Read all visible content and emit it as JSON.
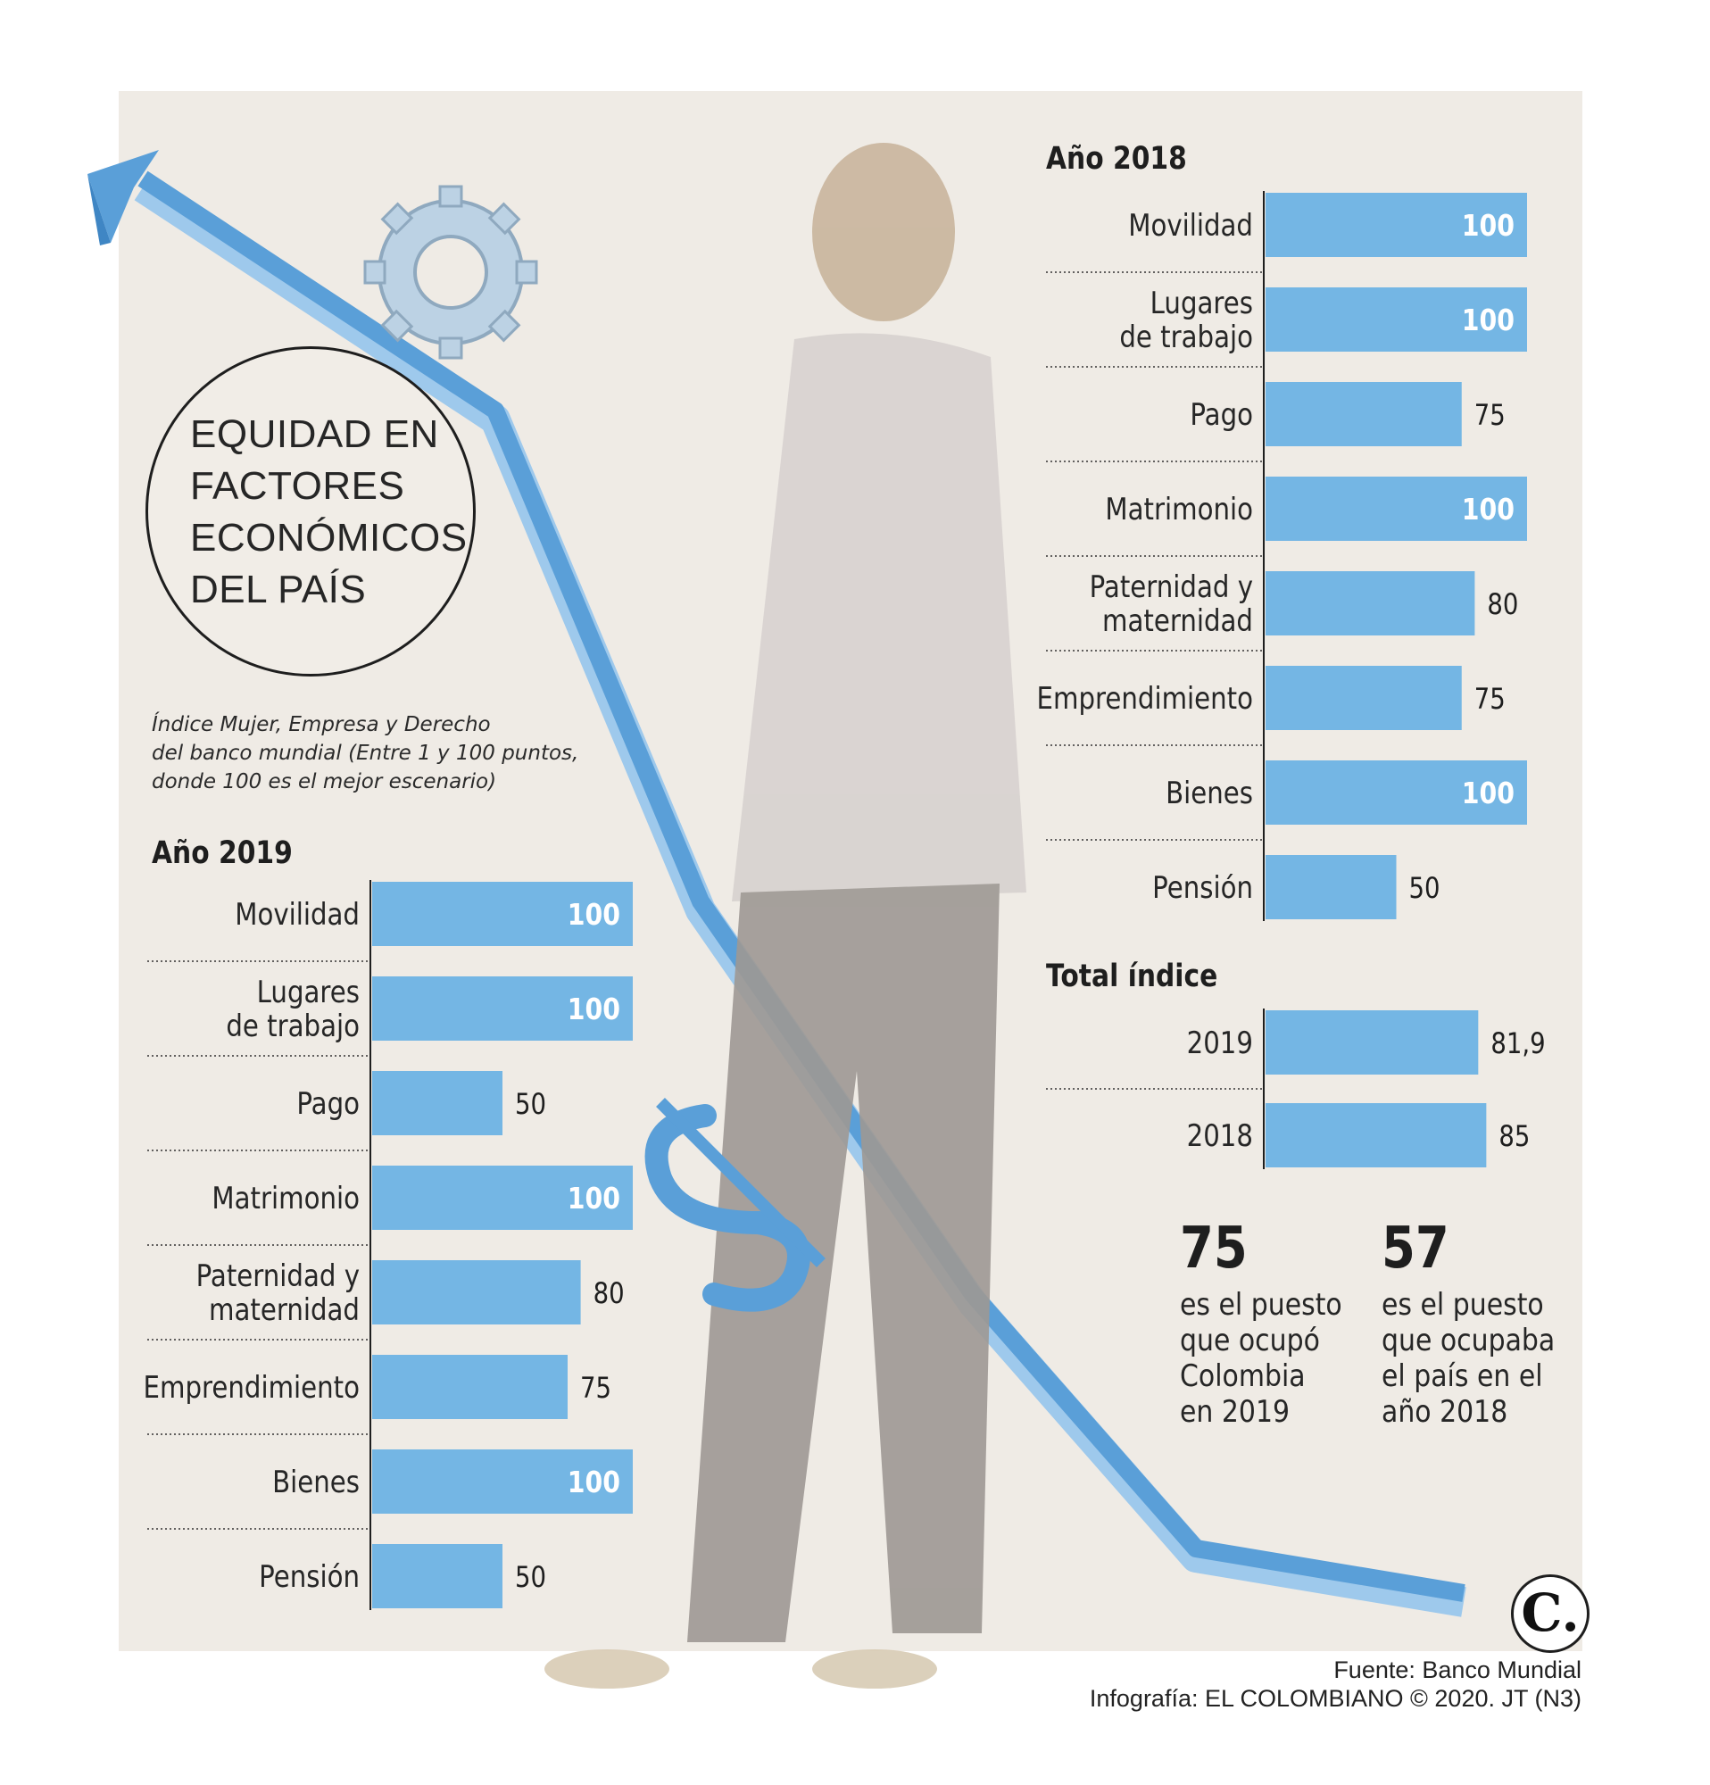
{
  "title": [
    "EQUIDAD EN",
    "FACTORES",
    "ECONÓMICOS",
    "DEL PAÍS"
  ],
  "subtitle": [
    "Índice Mujer, Empresa y Derecho",
    "del banco mundial (Entre 1 y 100 puntos,",
    "donde 100 es el mejor escenario)"
  ],
  "colors": {
    "bar": "#74b6e4",
    "background": "#efebe5",
    "text": "#1e1e1e",
    "value_on_bar": "#ffffff"
  },
  "icons": {
    "arrow": "downward-trend-arrow",
    "gear": "gear-icon",
    "dollar": "dollar-sign-icon",
    "logo": "el-colombiano-logo"
  },
  "stats": [
    {
      "number": "75",
      "lines": [
        "es el puesto",
        "que ocupó",
        "Colombia",
        "en 2019"
      ]
    },
    {
      "number": "57",
      "lines": [
        "es el puesto",
        "que ocupaba",
        "el país en el",
        "año 2018"
      ]
    }
  ],
  "footer": {
    "source": "Fuente: Banco Mundial",
    "credit": "Infografía: EL COLOMBIANO © 2020. JT (N3)"
  },
  "logo_text": "C.",
  "chart_data": [
    {
      "type": "bar",
      "orientation": "horizontal",
      "title": "Año 2019",
      "categories": [
        [
          "Movilidad"
        ],
        [
          "Lugares",
          "de trabajo"
        ],
        [
          "Pago"
        ],
        [
          "Matrimonio"
        ],
        [
          "Paternidad y",
          "maternidad"
        ],
        [
          "Emprendimiento"
        ],
        [
          "Bienes"
        ],
        [
          "Pensión"
        ]
      ],
      "values": [
        100,
        100,
        50,
        100,
        80,
        75,
        100,
        50
      ],
      "value_labels": [
        "100",
        "100",
        "50",
        "100",
        "80",
        "75",
        "100",
        "50"
      ],
      "xlim": [
        0,
        100
      ]
    },
    {
      "type": "bar",
      "orientation": "horizontal",
      "title": "Año 2018",
      "categories": [
        [
          "Movilidad"
        ],
        [
          "Lugares",
          "de trabajo"
        ],
        [
          "Pago"
        ],
        [
          "Matrimonio"
        ],
        [
          "Paternidad y",
          "maternidad"
        ],
        [
          "Emprendimiento"
        ],
        [
          "Bienes"
        ],
        [
          "Pensión"
        ]
      ],
      "values": [
        100,
        100,
        75,
        100,
        80,
        75,
        100,
        50
      ],
      "value_labels": [
        "100",
        "100",
        "75",
        "100",
        "80",
        "75",
        "100",
        "50"
      ],
      "xlim": [
        0,
        100
      ]
    },
    {
      "type": "bar",
      "orientation": "horizontal",
      "title": "Total índice",
      "categories": [
        [
          "2019"
        ],
        [
          "2018"
        ]
      ],
      "values": [
        81.9,
        85
      ],
      "value_labels": [
        "81,9",
        "85"
      ],
      "xlim": [
        0,
        100
      ]
    }
  ]
}
